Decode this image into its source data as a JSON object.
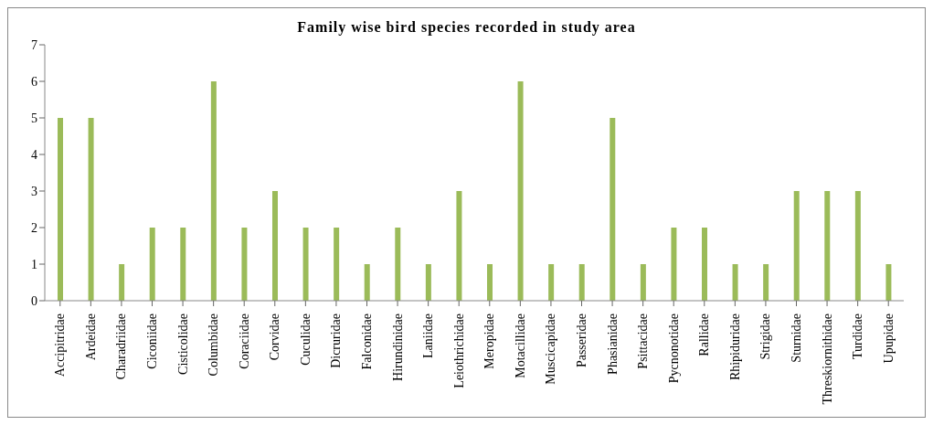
{
  "chart_data": {
    "type": "bar",
    "title": "Family wise bird species recorded in study area",
    "categories": [
      "Accipitridae",
      "Ardeidae",
      "Charadriidae",
      "Ciconiidae",
      "Cisticolidae",
      "Columbidae",
      "Coraciidae",
      "Corvidae",
      "Cuculidae",
      "Dicruridae",
      "Falconidae",
      "Hirundinidae",
      "Laniidae",
      "Leiothrichidae",
      "Meropidae",
      "Motacillidae",
      "Muscicapidae",
      "Passeridae",
      "Phasianidae",
      "Psittacidae",
      "Pycnonotidae",
      "Rallidae",
      "Rhipiduridae",
      "Strigidae",
      "Sturnidae",
      "Threskiornithidae",
      "Turdidae",
      "Upupidae"
    ],
    "values": [
      5,
      5,
      1,
      2,
      2,
      6,
      2,
      3,
      2,
      2,
      1,
      2,
      1,
      3,
      1,
      6,
      1,
      1,
      5,
      1,
      2,
      2,
      1,
      1,
      3,
      3,
      3,
      1
    ],
    "color": "#9bbb59",
    "ylim": [
      0,
      7
    ],
    "yticks": [
      0,
      1,
      2,
      3,
      4,
      5,
      6,
      7
    ],
    "grid": false,
    "legend": false
  }
}
